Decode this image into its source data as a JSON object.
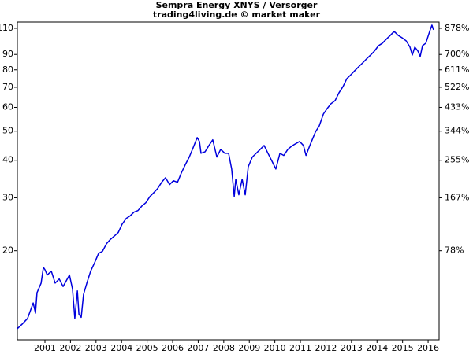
{
  "chart_data": {
    "type": "line",
    "title": "Sempra Energy XNYS / Versorger",
    "subtitle": "trading4living.de © market maker",
    "log_y": true,
    "xlim": [
      2000.42,
      2016.93
    ],
    "ylim": [
      10.1,
      115.4
    ],
    "xticks": [
      {
        "value": 2001.5,
        "label": "2001"
      },
      {
        "value": 2002.5,
        "label": "2002"
      },
      {
        "value": 2003.5,
        "label": "2003"
      },
      {
        "value": 2004.5,
        "label": "2004"
      },
      {
        "value": 2005.5,
        "label": "2005"
      },
      {
        "value": 2006.5,
        "label": "2006"
      },
      {
        "value": 2007.5,
        "label": "2007"
      },
      {
        "value": 2008.5,
        "label": "2008"
      },
      {
        "value": 2009.5,
        "label": "2009"
      },
      {
        "value": 2010.5,
        "label": "2010"
      },
      {
        "value": 2011.5,
        "label": "2011"
      },
      {
        "value": 2012.5,
        "label": "2012"
      },
      {
        "value": 2013.5,
        "label": "2013"
      },
      {
        "value": 2014.5,
        "label": "2014"
      },
      {
        "value": 2015.5,
        "label": "2015"
      },
      {
        "value": 2016.5,
        "label": "2016"
      }
    ],
    "yticks": [
      20,
      30,
      40,
      50,
      60,
      70,
      80,
      90,
      110
    ],
    "y2lim": [
      10.1,
      115.4
    ],
    "y2ticks": [
      {
        "value": 20,
        "label": "78%"
      },
      {
        "value": 30,
        "label": "167%"
      },
      {
        "value": 40,
        "label": "255%"
      },
      {
        "value": 50,
        "label": "344%"
      },
      {
        "value": 60,
        "label": "433%"
      },
      {
        "value": 70,
        "label": "522%"
      },
      {
        "value": 80,
        "label": "611%"
      },
      {
        "value": 90,
        "label": "700%"
      },
      {
        "value": 110,
        "label": "878%"
      }
    ],
    "series": [
      {
        "name": "Sempra Energy",
        "color": "#0000dd",
        "x": [
          2000.42,
          2000.61,
          2000.82,
          2001.04,
          2001.13,
          2001.19,
          2001.35,
          2001.44,
          2001.5,
          2001.59,
          2001.75,
          2001.9,
          2002.06,
          2002.21,
          2002.46,
          2002.58,
          2002.67,
          2002.77,
          2002.83,
          2002.92,
          2003.01,
          2003.14,
          2003.29,
          2003.44,
          2003.6,
          2003.75,
          2003.91,
          2004.06,
          2004.22,
          2004.37,
          2004.52,
          2004.68,
          2004.83,
          2004.99,
          2005.14,
          2005.3,
          2005.45,
          2005.61,
          2005.76,
          2005.91,
          2006.07,
          2006.22,
          2006.38,
          2006.53,
          2006.69,
          2006.84,
          2006.99,
          2007.15,
          2007.3,
          2007.46,
          2007.55,
          2007.61,
          2007.77,
          2007.92,
          2008.07,
          2008.23,
          2008.38,
          2008.54,
          2008.69,
          2008.81,
          2008.91,
          2008.97,
          2009.09,
          2009.22,
          2009.34,
          2009.46,
          2009.62,
          2009.77,
          2009.93,
          2010.08,
          2010.23,
          2010.39,
          2010.54,
          2010.7,
          2010.85,
          2011.01,
          2011.16,
          2011.31,
          2011.47,
          2011.62,
          2011.72,
          2011.87,
          2012.09,
          2012.24,
          2012.4,
          2012.55,
          2012.7,
          2012.86,
          2013.01,
          2013.17,
          2013.32,
          2013.48,
          2013.63,
          2013.78,
          2013.94,
          2014.09,
          2014.25,
          2014.4,
          2014.56,
          2014.71,
          2014.86,
          2015.02,
          2015.17,
          2015.33,
          2015.48,
          2015.64,
          2015.79,
          2015.88,
          2015.98,
          2016.1,
          2016.19,
          2016.28,
          2016.41,
          2016.56,
          2016.65,
          2016.71
        ],
        "values": [
          11.0,
          11.4,
          11.9,
          13.4,
          12.4,
          14.5,
          15.6,
          17.6,
          17.3,
          16.6,
          17.1,
          15.6,
          16.1,
          15.2,
          16.6,
          14.9,
          11.9,
          14.7,
          12.3,
          12.0,
          14.3,
          15.6,
          17.1,
          18.2,
          19.6,
          19.9,
          21.1,
          21.8,
          22.4,
          23.0,
          24.5,
          25.6,
          26.1,
          26.9,
          27.2,
          28.2,
          28.9,
          30.3,
          31.2,
          32.2,
          33.8,
          35.0,
          33.2,
          34.2,
          33.8,
          36.3,
          38.6,
          41.0,
          44.0,
          47.6,
          46.2,
          42.2,
          42.7,
          44.8,
          46.8,
          41.0,
          43.5,
          42.2,
          42.2,
          37.4,
          30.3,
          34.6,
          30.7,
          34.6,
          30.7,
          38.1,
          41.0,
          42.2,
          43.5,
          44.8,
          42.2,
          39.7,
          37.4,
          42.2,
          41.5,
          43.5,
          44.6,
          45.4,
          46.2,
          44.8,
          41.5,
          44.8,
          49.7,
          52.1,
          57.0,
          59.5,
          61.7,
          63.2,
          67.1,
          70.4,
          74.8,
          77.1,
          79.5,
          81.9,
          84.4,
          87.0,
          89.6,
          92.4,
          96.3,
          98.1,
          101.1,
          104.2,
          107.4,
          104.2,
          102.3,
          99.9,
          95.2,
          89.6,
          95.2,
          92.4,
          88.6,
          96.3,
          98.1,
          107.4,
          112.7,
          108.7
        ]
      }
    ]
  }
}
